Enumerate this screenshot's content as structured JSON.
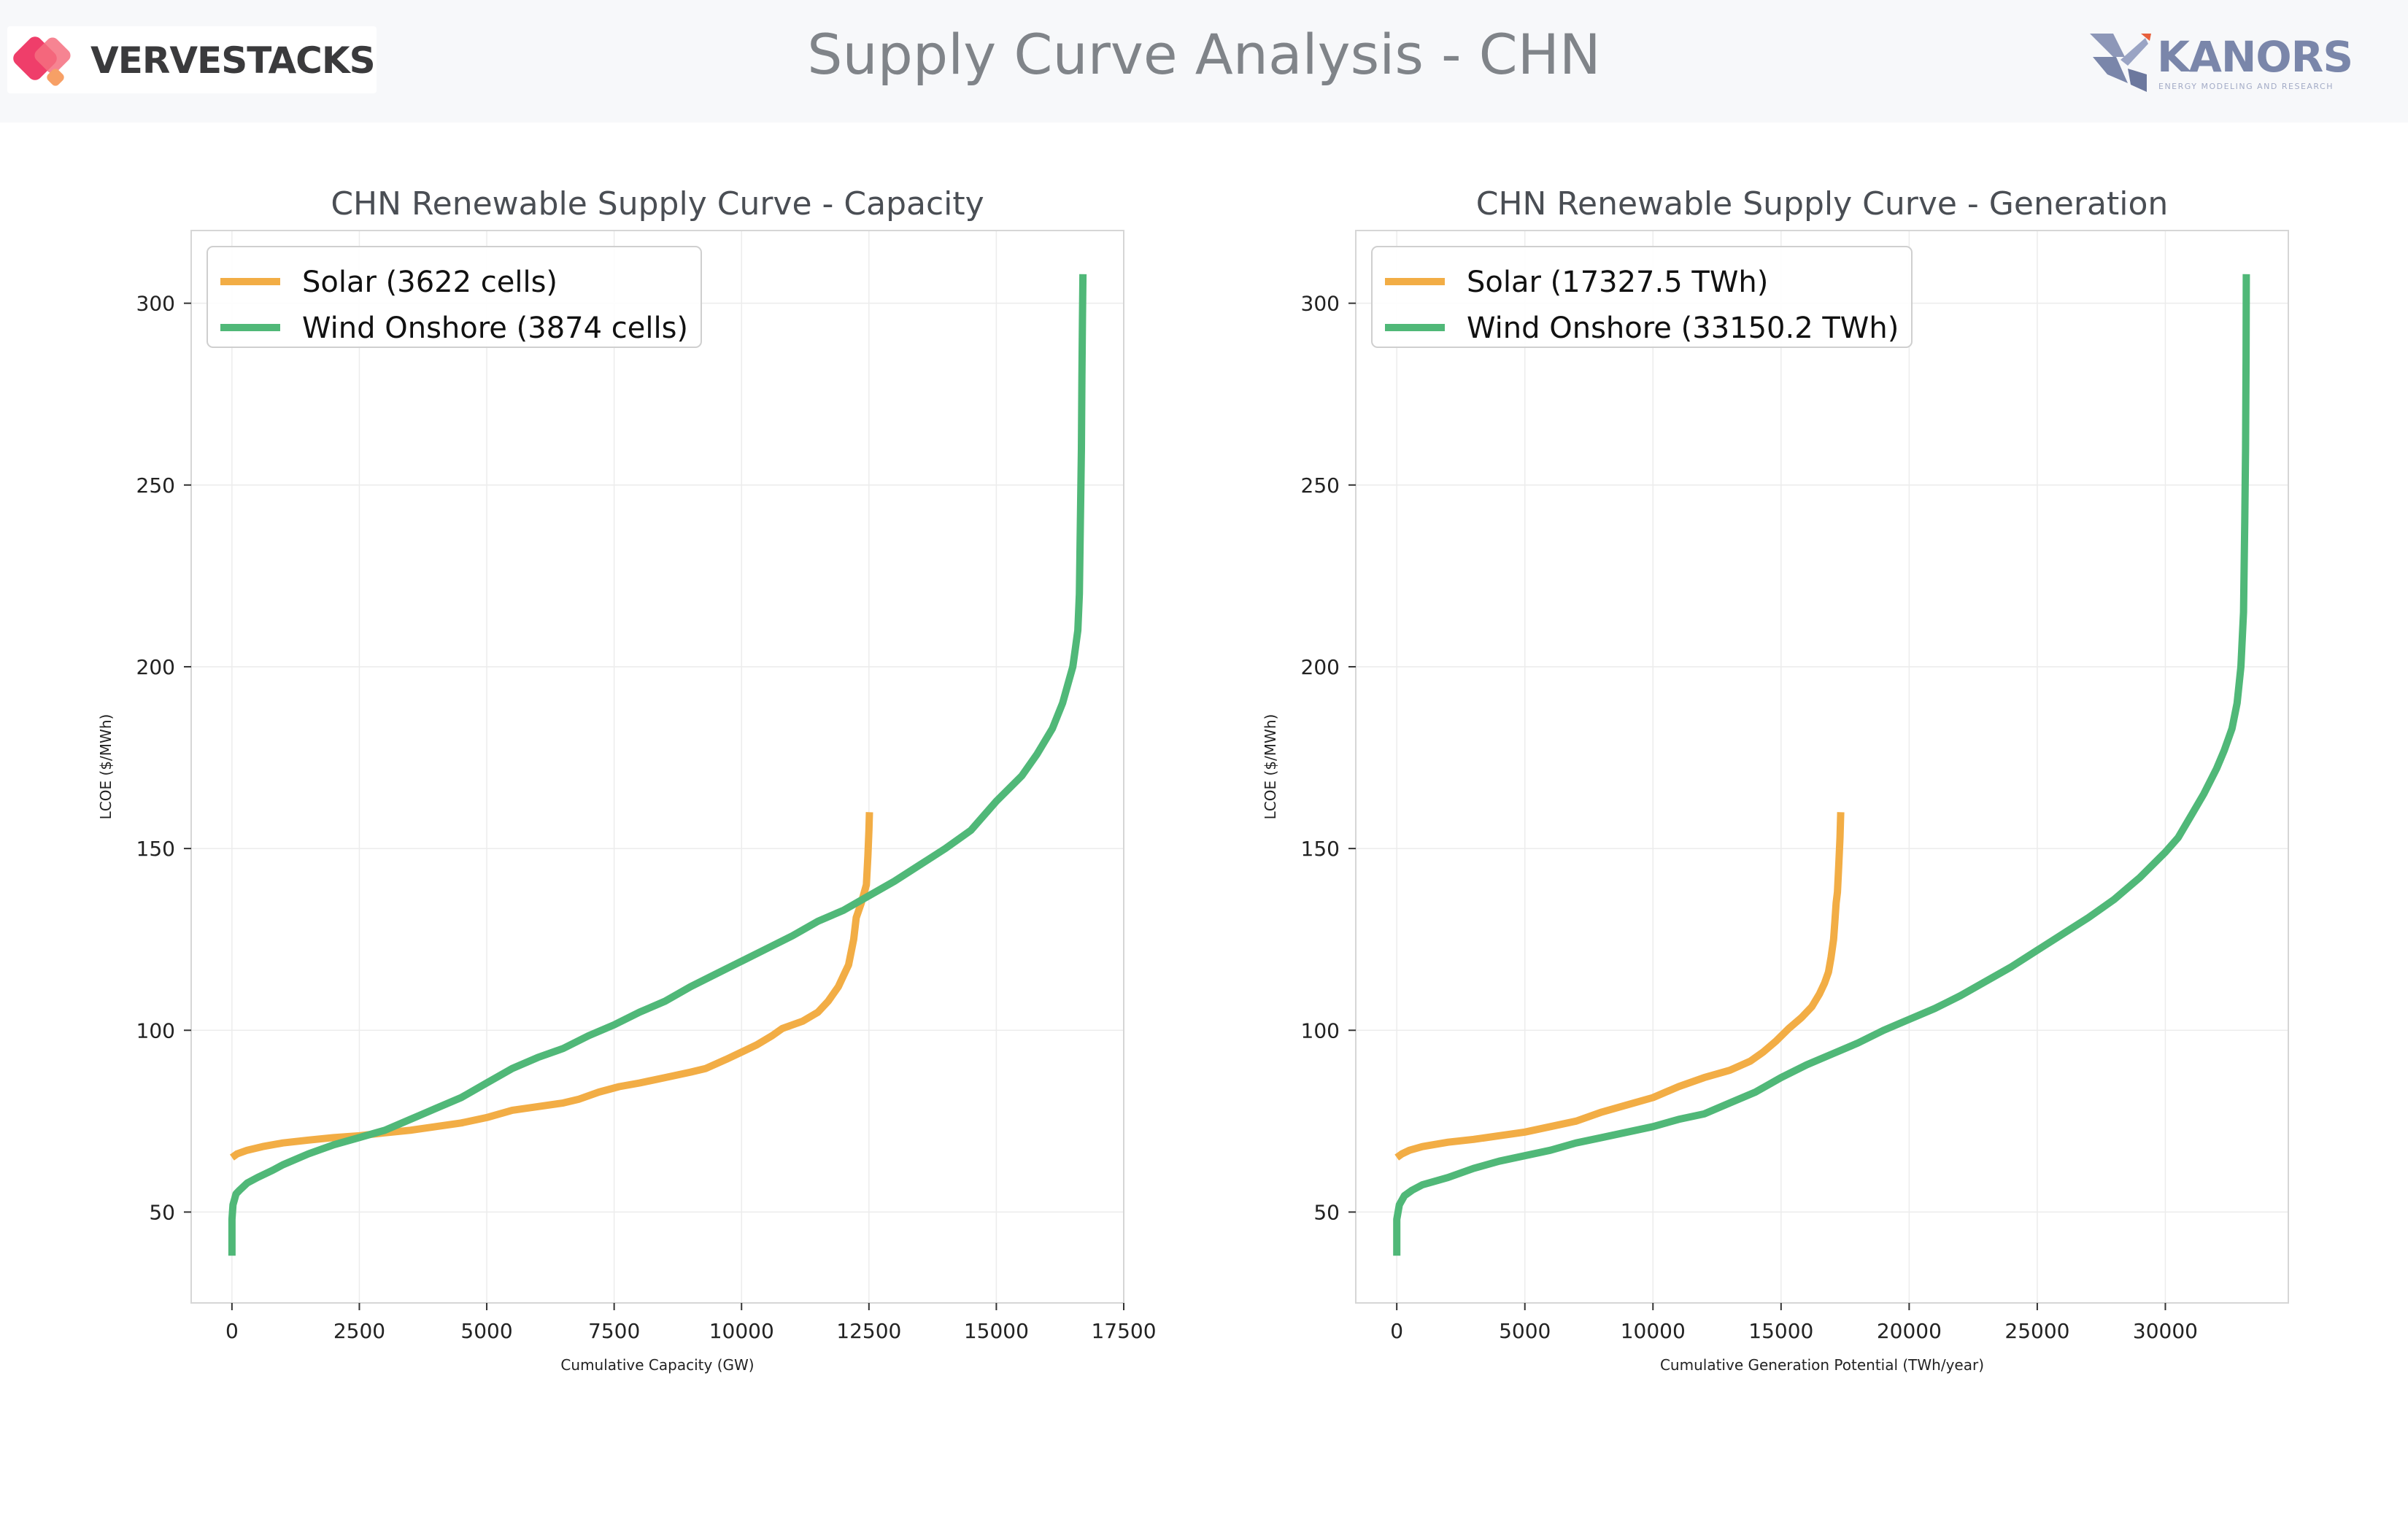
{
  "header": {
    "title": "Supply Curve Analysis - CHN",
    "brand_left": "VERVESTACKS",
    "brand_right": "KANORS",
    "brand_right_tagline": "ENERGY MODELING AND RESEARCH"
  },
  "colors": {
    "solar": "#f2ad45",
    "wind": "#50b878"
  },
  "chart_data": [
    {
      "type": "line",
      "title": "CHN Renewable Supply Curve - Capacity",
      "xlabel": "Cumulative Capacity (GW)",
      "ylabel": "LCOE ($/MWh)",
      "xlim": [
        -800,
        17500
      ],
      "ylim": [
        25,
        320
      ],
      "xticks": [
        0,
        2500,
        5000,
        7500,
        10000,
        12500,
        15000,
        17500
      ],
      "yticks": [
        50,
        100,
        150,
        200,
        250,
        300
      ],
      "grid": true,
      "legend": "top-left",
      "series": [
        {
          "name": "Solar (3622 cells)",
          "color": "#f2ad45",
          "x": [
            0,
            100,
            300,
            600,
            1000,
            1500,
            2000,
            2500,
            3000,
            3500,
            4000,
            4500,
            5000,
            5500,
            6000,
            6500,
            6800,
            7200,
            7600,
            8000,
            8500,
            9000,
            9300,
            9700,
            10000,
            10300,
            10600,
            10800,
            11200,
            11500,
            11700,
            11900,
            12000,
            12100,
            12200,
            12250,
            12350,
            12450,
            12480,
            12500,
            12510
          ],
          "y": [
            65,
            66,
            67,
            68,
            69,
            69.8,
            70.5,
            71,
            71.8,
            72.5,
            73.5,
            74.5,
            76,
            78,
            79,
            80,
            81,
            83,
            84.5,
            85.5,
            87,
            88.5,
            89.5,
            92,
            94,
            96,
            98.5,
            100.5,
            102.5,
            105,
            108,
            112,
            115,
            118,
            125,
            131,
            135,
            140,
            148,
            155,
            160
          ]
        },
        {
          "name": "Wind Onshore (3874 cells)",
          "color": "#50b878",
          "x": [
            0,
            0,
            20,
            80,
            150,
            300,
            500,
            800,
            1000,
            1500,
            2000,
            2500,
            3000,
            3500,
            4000,
            4500,
            5000,
            5500,
            6000,
            6500,
            7000,
            7500,
            8000,
            8500,
            9000,
            9500,
            10000,
            10500,
            11000,
            11500,
            12000,
            12500,
            13000,
            13500,
            14000,
            14500,
            15000,
            15500,
            15800,
            16100,
            16300,
            16400,
            16500,
            16550,
            16600,
            16630,
            16650,
            16670,
            16680,
            16690,
            16700
          ],
          "y": [
            38,
            48,
            52,
            55,
            56,
            58,
            59.5,
            61.5,
            63,
            66,
            68.5,
            70.5,
            72.5,
            75.5,
            78.5,
            81.5,
            85.5,
            89.5,
            92.5,
            95,
            98.5,
            101.5,
            105,
            108,
            112,
            115.5,
            119,
            122.5,
            126,
            130,
            133,
            137,
            141,
            145.5,
            150,
            155,
            163,
            170,
            176,
            183,
            190,
            195,
            200,
            205,
            210,
            220,
            240,
            260,
            280,
            295,
            308
          ]
        }
      ]
    },
    {
      "type": "line",
      "title": "CHN Renewable Supply Curve - Generation",
      "xlabel": "Cumulative Generation Potential (TWh/year)",
      "ylabel": "LCOE ($/MWh)",
      "xlim": [
        -1600,
        34800
      ],
      "ylim": [
        25,
        320
      ],
      "xticks": [
        0,
        5000,
        10000,
        15000,
        20000,
        25000,
        30000
      ],
      "yticks": [
        50,
        100,
        150,
        200,
        250,
        300
      ],
      "grid": true,
      "legend": "top-left",
      "series": [
        {
          "name": "Solar (17327.5 TWh)",
          "color": "#f2ad45",
          "x": [
            0,
            200,
            500,
            1000,
            2000,
            3000,
            4000,
            5000,
            6000,
            7000,
            8000,
            9000,
            10000,
            10500,
            11000,
            12000,
            13000,
            13800,
            14300,
            14800,
            15300,
            15800,
            16200,
            16500,
            16700,
            16850,
            16950,
            17050,
            17100,
            17150,
            17200,
            17250,
            17300,
            17330
          ],
          "y": [
            65,
            66,
            67,
            68,
            69.2,
            70,
            71,
            72,
            73.5,
            75,
            77.5,
            79.5,
            81.5,
            83,
            84.5,
            87,
            89,
            91.5,
            94,
            97,
            100.5,
            103.5,
            106.5,
            110,
            113,
            116,
            120,
            125,
            130,
            135,
            138,
            145,
            153,
            160
          ]
        },
        {
          "name": "Wind Onshore (33150.2 TWh)",
          "color": "#50b878",
          "x": [
            0,
            0,
            100,
            300,
            600,
            1000,
            2000,
            3000,
            4000,
            5000,
            6000,
            7000,
            8000,
            9000,
            10000,
            11000,
            12000,
            13000,
            14000,
            15000,
            16000,
            17000,
            18000,
            19000,
            20000,
            21000,
            22000,
            23000,
            24000,
            25000,
            26000,
            27000,
            28000,
            29000,
            30000,
            30500,
            31000,
            31500,
            32000,
            32300,
            32600,
            32800,
            32950,
            33050,
            33100,
            33130,
            33150,
            33160
          ],
          "y": [
            38,
            48,
            52,
            54.5,
            56,
            57.5,
            59.5,
            62,
            64,
            65.5,
            67,
            69,
            70.5,
            72,
            73.5,
            75.5,
            77,
            80,
            83,
            87,
            90.5,
            93.5,
            96.5,
            100,
            103,
            106,
            109.5,
            113.5,
            117.5,
            122,
            126.5,
            131,
            136,
            142,
            149,
            153,
            159,
            165,
            172,
            177,
            183,
            190,
            200,
            215,
            240,
            260,
            285,
            308
          ]
        }
      ]
    }
  ]
}
